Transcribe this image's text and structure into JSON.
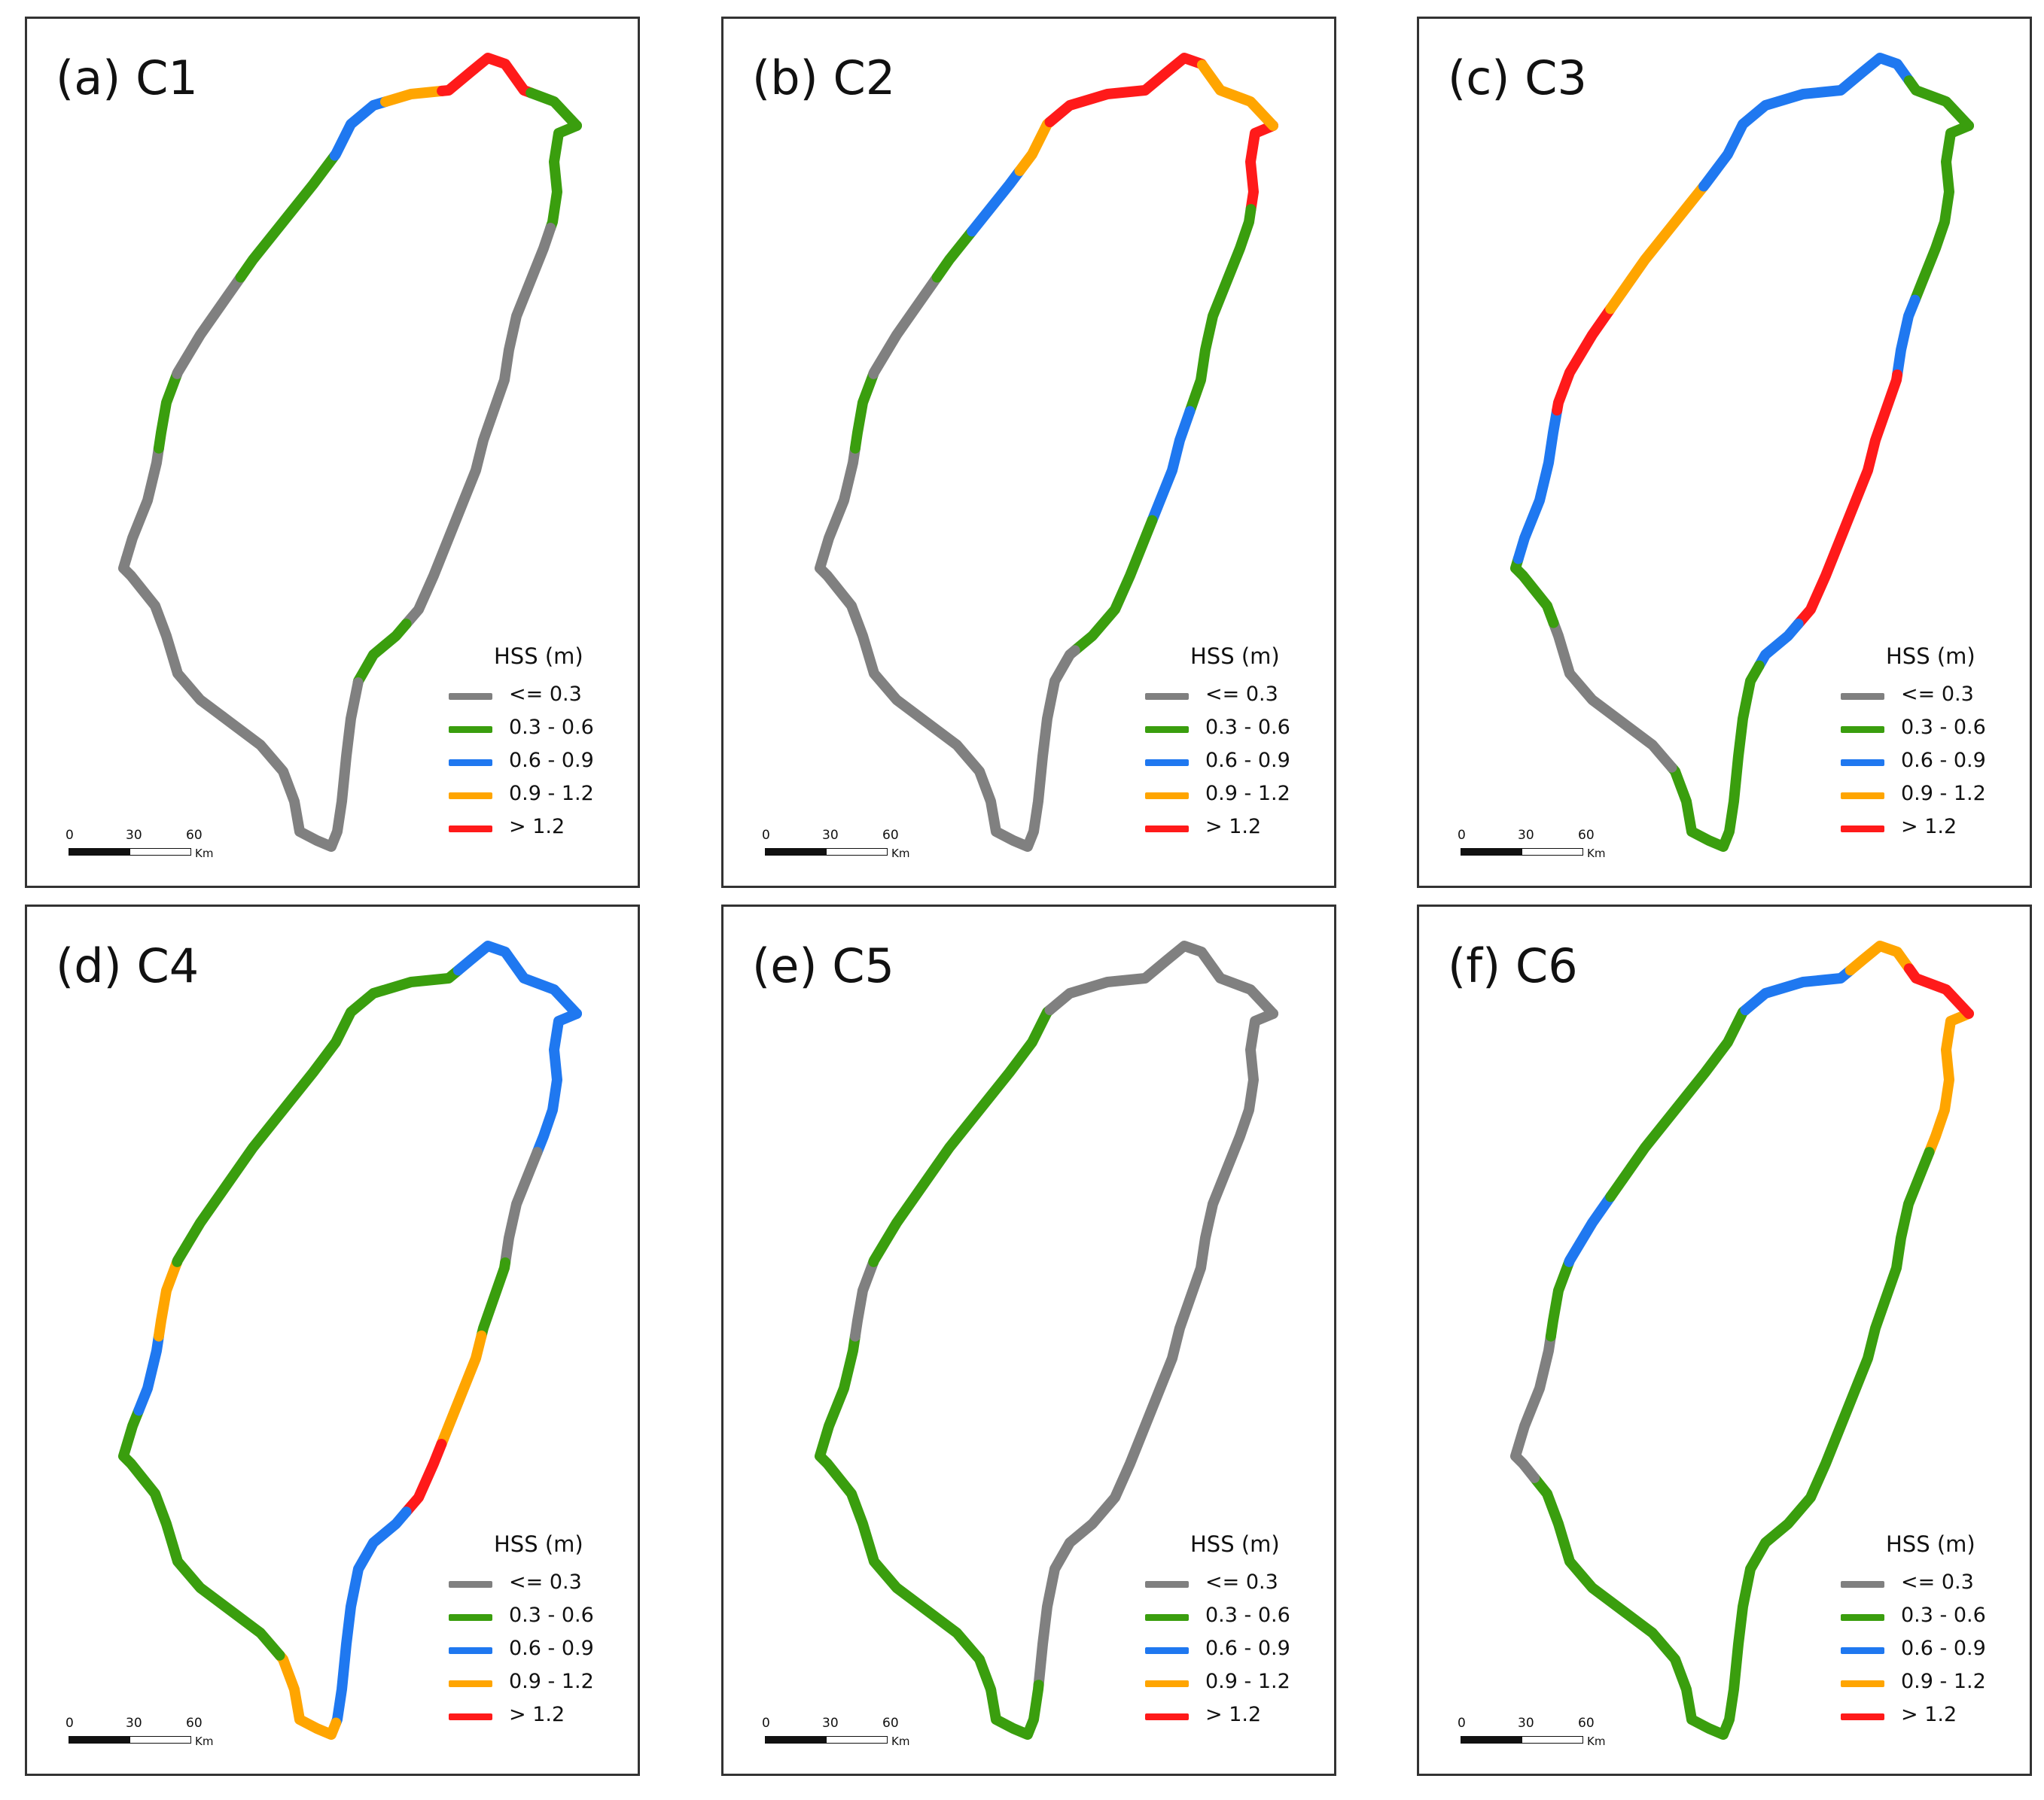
{
  "colors": {
    "le_0_3": "#808080",
    "b_0_3_0_6": "#3a9e0e",
    "b_0_6_0_9": "#1f78f0",
    "b_0_9_1_2": "#ffa500",
    "gt_1_2": "#ff1a1a"
  },
  "legend": {
    "title": "HSS (m)",
    "items": [
      {
        "label": "<= 0.3",
        "color": "#808080"
      },
      {
        "label": "0.3 - 0.6",
        "color": "#3a9e0e"
      },
      {
        "label": "0.6 - 0.9",
        "color": "#1f78f0"
      },
      {
        "label": "0.9 - 1.2",
        "color": "#ffa500"
      },
      {
        "label": "> 1.2",
        "color": "#ff1a1a"
      }
    ]
  },
  "scalebar": {
    "ticks": [
      "0",
      "30",
      "60"
    ],
    "unit": "Km"
  },
  "panels": [
    {
      "title": "(a) C1",
      "segments": [
        {
          "cat": 1,
          "pts": [
            0.0,
            0.06
          ]
        },
        {
          "cat": 0,
          "pts": [
            0.06,
            0.28
          ]
        },
        {
          "cat": 1,
          "pts": [
            0.28,
            0.32
          ]
        },
        {
          "cat": 0,
          "pts": [
            0.32,
            0.5
          ]
        },
        {
          "cat": 0,
          "pts": [
            0.5,
            0.6
          ]
        },
        {
          "cat": 0,
          "pts": [
            0.6,
            0.66
          ]
        },
        {
          "cat": 1,
          "pts": [
            0.66,
            0.7
          ]
        },
        {
          "cat": 0,
          "pts": [
            0.7,
            0.76
          ]
        },
        {
          "cat": 1,
          "pts": [
            0.76,
            0.84
          ]
        },
        {
          "cat": 2,
          "pts": [
            0.84,
            0.88
          ]
        },
        {
          "cat": 3,
          "pts": [
            0.88,
            0.91
          ]
        },
        {
          "cat": 4,
          "pts": [
            0.91,
            0.97
          ]
        },
        {
          "cat": 1,
          "pts": [
            0.97,
            1.0
          ]
        }
      ]
    },
    {
      "title": "(b) C2",
      "segments": [
        {
          "cat": 4,
          "pts": [
            0.0,
            0.05
          ]
        },
        {
          "cat": 1,
          "pts": [
            0.05,
            0.16
          ]
        },
        {
          "cat": 2,
          "pts": [
            0.16,
            0.22
          ]
        },
        {
          "cat": 1,
          "pts": [
            0.22,
            0.3
          ]
        },
        {
          "cat": 0,
          "pts": [
            0.3,
            0.66
          ]
        },
        {
          "cat": 1,
          "pts": [
            0.66,
            0.7
          ]
        },
        {
          "cat": 0,
          "pts": [
            0.7,
            0.76
          ]
        },
        {
          "cat": 1,
          "pts": [
            0.76,
            0.79
          ]
        },
        {
          "cat": 2,
          "pts": [
            0.79,
            0.83
          ]
        },
        {
          "cat": 3,
          "pts": [
            0.83,
            0.86
          ]
        },
        {
          "cat": 4,
          "pts": [
            0.86,
            0.95
          ]
        },
        {
          "cat": 3,
          "pts": [
            0.95,
            1.0
          ]
        }
      ]
    },
    {
      "title": "(c) C3",
      "segments": [
        {
          "cat": 1,
          "pts": [
            0.0,
            0.1
          ]
        },
        {
          "cat": 2,
          "pts": [
            0.1,
            0.14
          ]
        },
        {
          "cat": 4,
          "pts": [
            0.14,
            0.28
          ]
        },
        {
          "cat": 2,
          "pts": [
            0.28,
            0.31
          ]
        },
        {
          "cat": 1,
          "pts": [
            0.31,
            0.46
          ]
        },
        {
          "cat": 0,
          "pts": [
            0.46,
            0.56
          ]
        },
        {
          "cat": 1,
          "pts": [
            0.56,
            0.6
          ]
        },
        {
          "cat": 2,
          "pts": [
            0.6,
            0.68
          ]
        },
        {
          "cat": 4,
          "pts": [
            0.68,
            0.74
          ]
        },
        {
          "cat": 3,
          "pts": [
            0.74,
            0.82
          ]
        },
        {
          "cat": 2,
          "pts": [
            0.82,
            0.96
          ]
        },
        {
          "cat": 1,
          "pts": [
            0.96,
            1.0
          ]
        }
      ]
    },
    {
      "title": "(d) C4",
      "segments": [
        {
          "cat": 2,
          "pts": [
            0.0,
            0.08
          ]
        },
        {
          "cat": 0,
          "pts": [
            0.08,
            0.14
          ]
        },
        {
          "cat": 1,
          "pts": [
            0.14,
            0.18
          ]
        },
        {
          "cat": 3,
          "pts": [
            0.18,
            0.24
          ]
        },
        {
          "cat": 4,
          "pts": [
            0.24,
            0.28
          ]
        },
        {
          "cat": 2,
          "pts": [
            0.28,
            0.4
          ]
        },
        {
          "cat": 3,
          "pts": [
            0.4,
            0.46
          ]
        },
        {
          "cat": 1,
          "pts": [
            0.46,
            0.62
          ]
        },
        {
          "cat": 2,
          "pts": [
            0.62,
            0.66
          ]
        },
        {
          "cat": 3,
          "pts": [
            0.66,
            0.7
          ]
        },
        {
          "cat": 1,
          "pts": [
            0.7,
            0.92
          ]
        },
        {
          "cat": 2,
          "pts": [
            0.92,
            1.0
          ]
        }
      ]
    },
    {
      "title": "(e) C5",
      "segments": [
        {
          "cat": 0,
          "pts": [
            0.0,
            0.38
          ]
        },
        {
          "cat": 1,
          "pts": [
            0.38,
            0.44
          ]
        },
        {
          "cat": 1,
          "pts": [
            0.44,
            0.66
          ]
        },
        {
          "cat": 0,
          "pts": [
            0.66,
            0.7
          ]
        },
        {
          "cat": 1,
          "pts": [
            0.7,
            0.86
          ]
        },
        {
          "cat": 0,
          "pts": [
            0.86,
            1.0
          ]
        }
      ]
    },
    {
      "title": "(f) C6",
      "segments": [
        {
          "cat": 3,
          "pts": [
            0.0,
            0.08
          ]
        },
        {
          "cat": 1,
          "pts": [
            0.08,
            0.4
          ]
        },
        {
          "cat": 1,
          "pts": [
            0.4,
            0.58
          ]
        },
        {
          "cat": 0,
          "pts": [
            0.58,
            0.66
          ]
        },
        {
          "cat": 1,
          "pts": [
            0.66,
            0.7
          ]
        },
        {
          "cat": 2,
          "pts": [
            0.7,
            0.74
          ]
        },
        {
          "cat": 1,
          "pts": [
            0.74,
            0.86
          ]
        },
        {
          "cat": 2,
          "pts": [
            0.86,
            0.92
          ]
        },
        {
          "cat": 3,
          "pts": [
            0.92,
            0.96
          ]
        },
        {
          "cat": 4,
          "pts": [
            0.96,
            1.0
          ]
        }
      ]
    }
  ]
}
